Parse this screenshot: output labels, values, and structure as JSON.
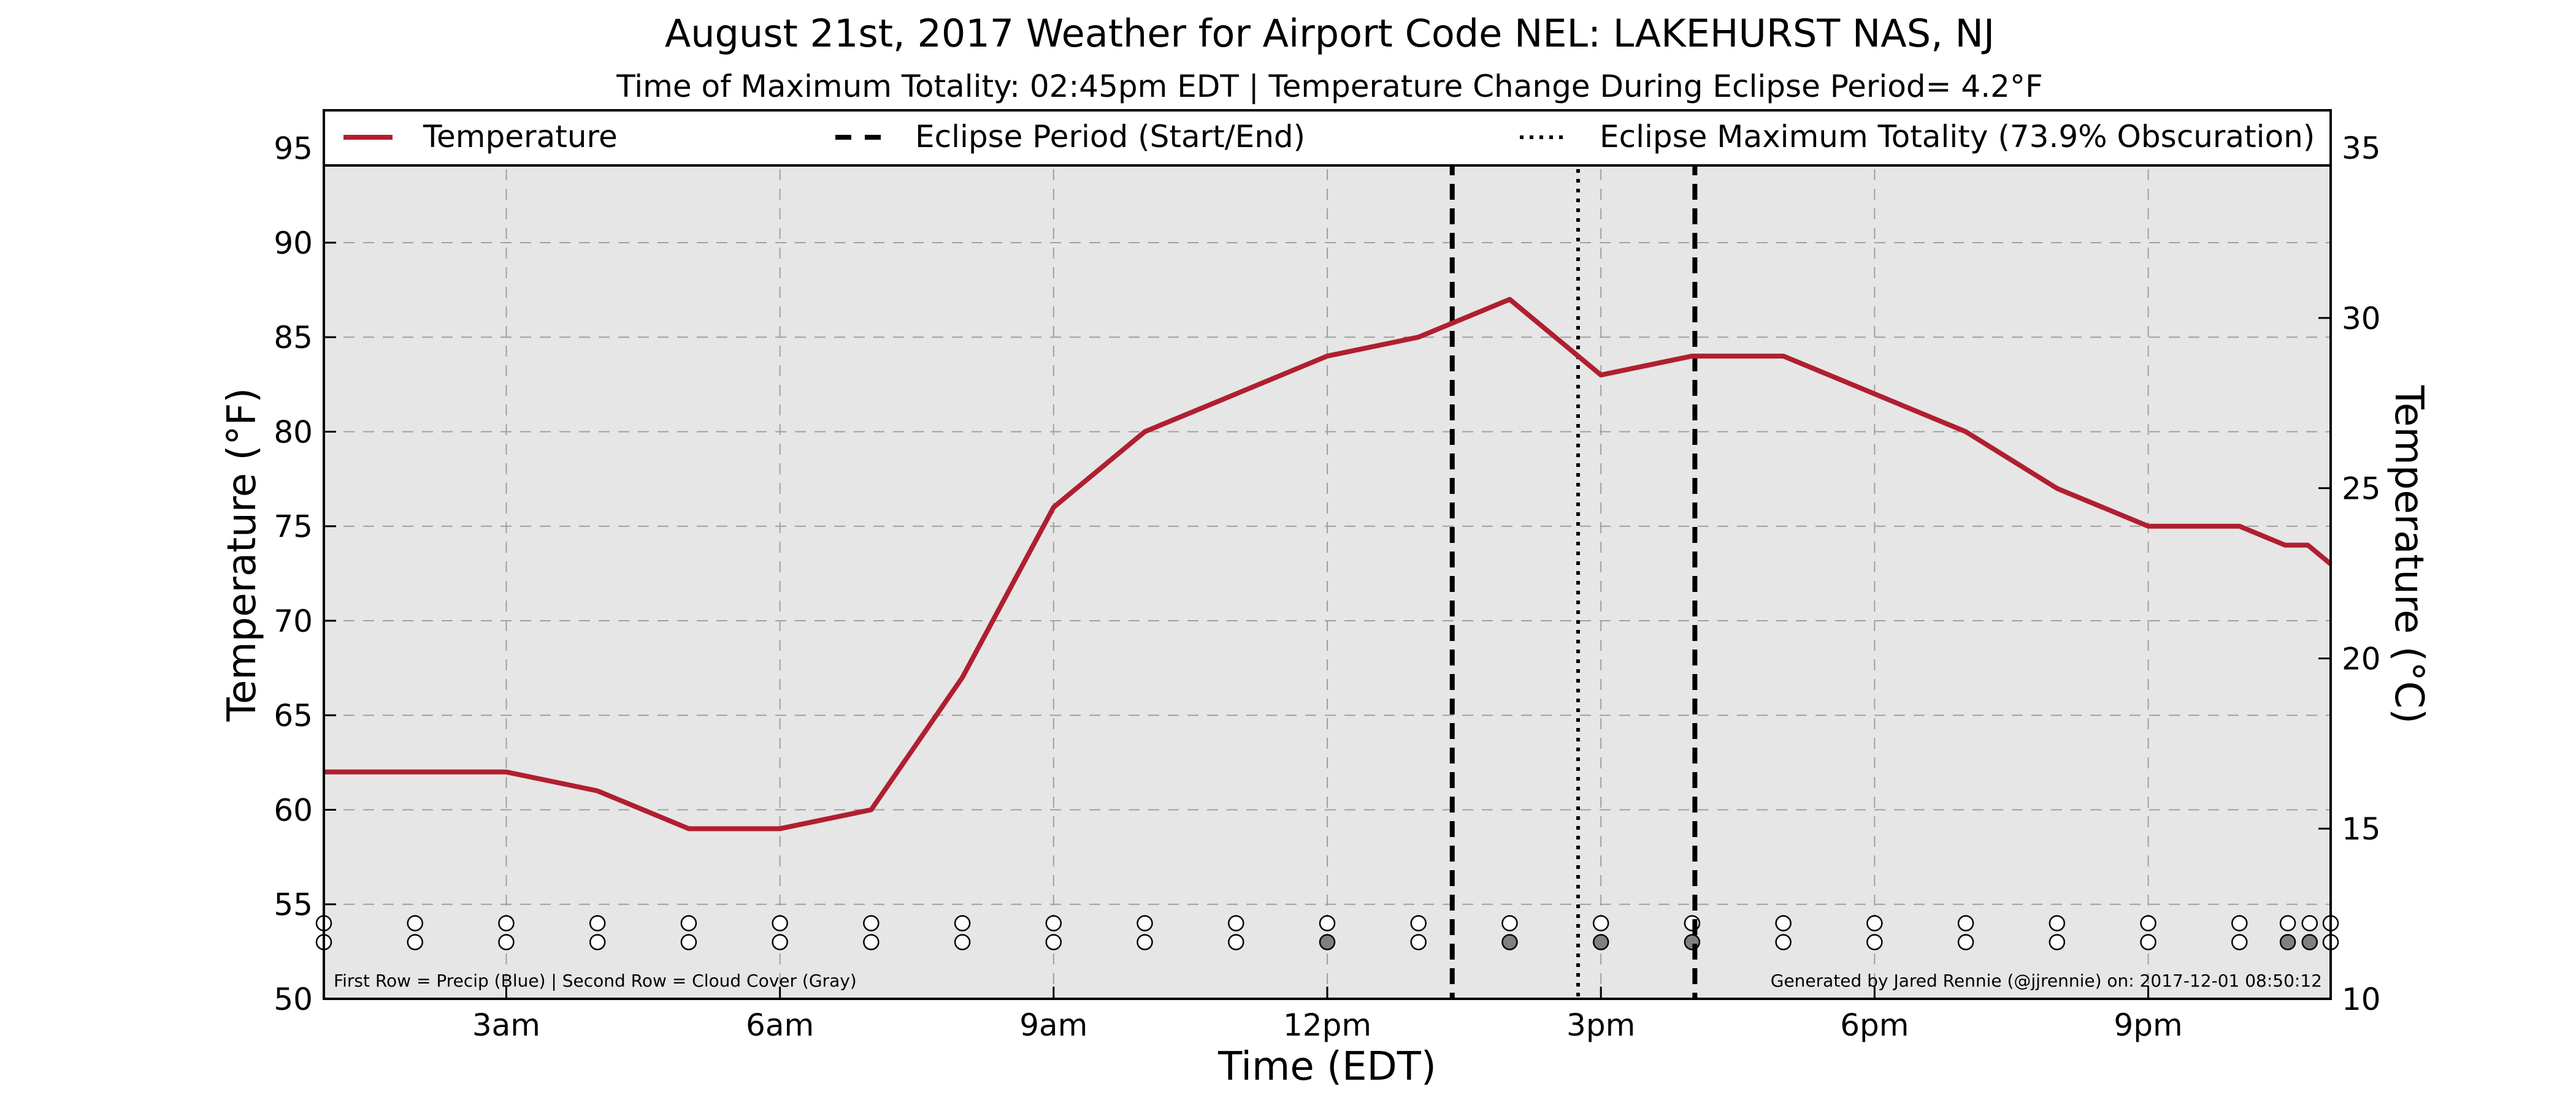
{
  "chart_data": {
    "type": "line",
    "title": "August 21st, 2017 Weather for Airport Code NEL: LAKEHURST NAS, NJ",
    "subtitle": "Time of Maximum Totality: 02:45pm EDT | Temperature Change During Eclipse Period= 4.2°F",
    "xlabel": "Time (EDT)",
    "ylabel": "Temperature (°F)",
    "ylabel_right": "Temperature (°C)",
    "x_unit": "hours after midnight EDT",
    "xlim": [
      1,
      23
    ],
    "ylim": [
      50,
      97
    ],
    "ylim_right": [
      10,
      36.1
    ],
    "x_ticks": [
      3,
      6,
      9,
      12,
      15,
      18,
      21
    ],
    "x_tick_labels": [
      "3am",
      "6am",
      "9am",
      "12pm",
      "3pm",
      "6pm",
      "9pm"
    ],
    "y_ticks": [
      50,
      55,
      60,
      65,
      70,
      75,
      80,
      85,
      90,
      95
    ],
    "y_tick_labels": [
      "50",
      "55",
      "60",
      "65",
      "70",
      "75",
      "80",
      "85",
      "90",
      "95"
    ],
    "y_right_ticks": [
      10,
      15,
      20,
      25,
      30,
      35
    ],
    "y_right_tick_labels": [
      "10",
      "15",
      "20",
      "25",
      "30",
      "35"
    ],
    "grid": true,
    "legend_placement": "top",
    "legend": [
      {
        "label": "Temperature",
        "style": "solid",
        "color": "#b01f30"
      },
      {
        "label": "Eclipse Period (Start/End)",
        "style": "dashed",
        "color": "#000000"
      },
      {
        "label": "Eclipse Maximum Totality (73.9% Obscuration)",
        "style": "dotted",
        "color": "#000000"
      }
    ],
    "series": [
      {
        "name": "Temperature",
        "color": "#b01f30",
        "x": [
          1,
          2,
          3,
          4,
          5,
          6,
          7,
          8,
          9,
          10,
          11,
          12,
          13,
          14,
          15,
          16,
          17,
          18,
          19,
          20,
          21,
          22,
          22.5,
          22.75,
          23
        ],
        "values": [
          62,
          62,
          62,
          61,
          59,
          59,
          60,
          67,
          76,
          80,
          82,
          84,
          85,
          87,
          83,
          84,
          84,
          82,
          80,
          77,
          75,
          75,
          74,
          74,
          73
        ]
      }
    ],
    "eclipse_start": 13.37,
    "eclipse_end": 16.03,
    "eclipse_max": 14.75,
    "marker_rows": {
      "x": [
        1,
        2,
        3,
        4,
        5,
        6,
        7,
        8,
        9,
        10,
        11,
        12,
        13,
        14,
        15,
        16,
        17,
        18,
        19,
        20,
        21,
        22,
        22.53,
        22.77,
        23
      ],
      "precip": [
        0,
        0,
        0,
        0,
        0,
        0,
        0,
        0,
        0,
        0,
        0,
        0,
        0,
        0,
        0,
        0,
        0,
        0,
        0,
        0,
        0,
        0,
        0,
        0,
        0
      ],
      "cloud": [
        0,
        0,
        0,
        0,
        0,
        0,
        0,
        0,
        0,
        0,
        0,
        1,
        0,
        1,
        1,
        1,
        0,
        0,
        0,
        0,
        0,
        0,
        1,
        1,
        0
      ],
      "precip_y": 54,
      "cloud_y": 53,
      "clear_color": "#ffffff",
      "cloud_color": "#808080"
    },
    "footnote_left": "First Row = Precip (Blue) | Second Row = Cloud Cover (Gray)",
    "footnote_right": "Generated by Jared Rennie (@jjrennie) on: 2017-12-01 08:50:12",
    "plot_background": "#e6e6e6"
  }
}
